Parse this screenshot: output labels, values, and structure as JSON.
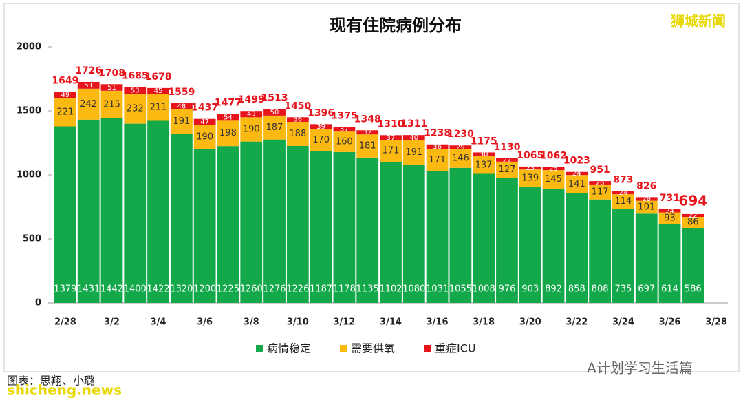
{
  "chart_data": {
    "type": "stacked-bar",
    "title": "现有住院病例分布",
    "categories": [
      "2/28",
      null,
      "3/2",
      null,
      "3/4",
      null,
      "3/6",
      null,
      "3/8",
      null,
      "3/10",
      null,
      "3/12",
      null,
      "3/14",
      null,
      "3/16",
      null,
      "3/18",
      null,
      "3/20",
      null,
      "3/22",
      null,
      "3/24",
      null,
      "3/26",
      null,
      "3/28"
    ],
    "series": [
      {
        "name": "病情稳定",
        "color": "#13a84a",
        "values": [
          1379,
          1431,
          1442,
          1400,
          1422,
          1320,
          1200,
          1225,
          1260,
          1276,
          1226,
          1187,
          1178,
          1135,
          1102,
          1080,
          1031,
          1055,
          1008,
          976,
          903,
          892,
          858,
          808,
          735,
          697,
          614,
          586,
          null
        ]
      },
      {
        "name": "需要供氧",
        "color": "#fbb912",
        "values": [
          221,
          242,
          215,
          232,
          211,
          191,
          190,
          198,
          190,
          187,
          188,
          170,
          160,
          181,
          171,
          191,
          171,
          146,
          137,
          127,
          139,
          145,
          141,
          117,
          114,
          101,
          93,
          86,
          null
        ]
      },
      {
        "name": "重症ICU",
        "color": "#e8141c",
        "values": [
          49,
          53,
          51,
          53,
          45,
          48,
          47,
          54,
          49,
          50,
          36,
          39,
          37,
          32,
          37,
          40,
          36,
          29,
          30,
          27,
          23,
          25,
          24,
          26,
          24,
          28,
          24,
          22,
          null
        ]
      }
    ],
    "totals": [
      1649,
      1726,
      1708,
      1685,
      1678,
      1559,
      1437,
      1477,
      1499,
      1513,
      1450,
      1396,
      1375,
      1348,
      1310,
      1311,
      1238,
      1230,
      1175,
      1130,
      1065,
      1062,
      1023,
      951,
      873,
      826,
      731,
      694,
      null
    ],
    "ylim": [
      0,
      2000
    ],
    "yticks": [
      0,
      500,
      1000,
      1500,
      2000
    ],
    "grid": false,
    "legend": "bottom"
  },
  "watermarks": {
    "brand": "狮城新闻",
    "credit": "图表：思翔、小璐",
    "account": "A计划学习生活篇",
    "site": "shicheng.news"
  }
}
